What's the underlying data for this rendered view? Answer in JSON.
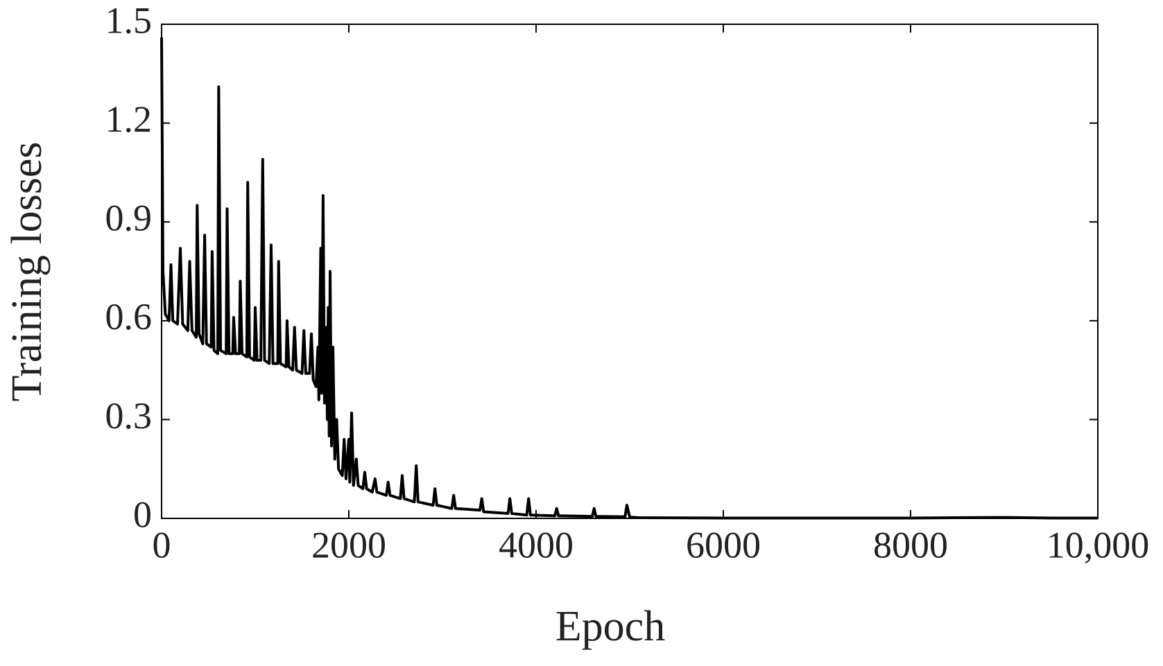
{
  "chart_data": {
    "type": "line",
    "x_label": "Epoch",
    "y_label": "Training losses",
    "x": [
      0,
      15,
      40,
      80,
      100,
      120,
      170,
      200,
      225,
      280,
      300,
      325,
      370,
      380,
      400,
      440,
      460,
      480,
      530,
      540,
      560,
      600,
      610,
      630,
      690,
      700,
      720,
      760,
      770,
      790,
      830,
      840,
      860,
      910,
      920,
      940,
      990,
      1000,
      1020,
      1060,
      1080,
      1100,
      1150,
      1170,
      1190,
      1240,
      1250,
      1270,
      1330,
      1340,
      1360,
      1400,
      1420,
      1440,
      1500,
      1520,
      1540,
      1580,
      1600,
      1620,
      1650,
      1670,
      1680,
      1700,
      1710,
      1725,
      1740,
      1760,
      1770,
      1780,
      1790,
      1800,
      1815,
      1830,
      1850,
      1870,
      1890,
      1930,
      1950,
      1970,
      2000,
      2010,
      2030,
      2050,
      2080,
      2100,
      2150,
      2170,
      2190,
      2250,
      2280,
      2300,
      2400,
      2420,
      2440,
      2550,
      2570,
      2590,
      2700,
      2720,
      2740,
      2900,
      2920,
      2940,
      3100,
      3120,
      3140,
      3400,
      3420,
      3440,
      3700,
      3720,
      3740,
      3900,
      3920,
      3940,
      4200,
      4220,
      4240,
      4600,
      4620,
      4640,
      4950,
      4970,
      5000,
      5100,
      6000,
      8000,
      9000,
      9500,
      10000
    ],
    "values": [
      1.46,
      0.75,
      0.62,
      0.6,
      0.77,
      0.6,
      0.59,
      0.82,
      0.59,
      0.57,
      0.78,
      0.57,
      0.55,
      0.95,
      0.56,
      0.53,
      0.86,
      0.53,
      0.52,
      0.81,
      0.51,
      0.5,
      1.31,
      0.51,
      0.5,
      0.94,
      0.5,
      0.5,
      0.61,
      0.5,
      0.5,
      0.72,
      0.5,
      0.49,
      1.02,
      0.49,
      0.48,
      0.64,
      0.48,
      0.48,
      1.09,
      0.48,
      0.47,
      0.83,
      0.47,
      0.47,
      0.78,
      0.47,
      0.46,
      0.6,
      0.46,
      0.45,
      0.58,
      0.45,
      0.44,
      0.57,
      0.44,
      0.44,
      0.56,
      0.42,
      0.4,
      0.52,
      0.36,
      0.82,
      0.38,
      0.98,
      0.35,
      0.58,
      0.3,
      0.64,
      0.25,
      0.75,
      0.22,
      0.52,
      0.18,
      0.3,
      0.15,
      0.13,
      0.24,
      0.12,
      0.24,
      0.11,
      0.32,
      0.1,
      0.18,
      0.1,
      0.09,
      0.14,
      0.09,
      0.08,
      0.12,
      0.08,
      0.07,
      0.11,
      0.07,
      0.06,
      0.13,
      0.06,
      0.05,
      0.16,
      0.05,
      0.04,
      0.09,
      0.04,
      0.03,
      0.07,
      0.03,
      0.025,
      0.06,
      0.02,
      0.015,
      0.06,
      0.015,
      0.01,
      0.06,
      0.01,
      0.008,
      0.03,
      0.008,
      0.006,
      0.03,
      0.006,
      0.005,
      0.04,
      0.004,
      0.002,
      0.001,
      0.001,
      0.003,
      0.001,
      0.001
    ],
    "color": "#000000",
    "xlim": [
      0,
      10000
    ],
    "xticks": [
      0,
      2000,
      4000,
      6000,
      8000,
      {
        "value": 10000,
        "label": "10,000"
      }
    ],
    "ylim": [
      0,
      1.5
    ],
    "yticks": [
      0,
      0.3,
      0.6,
      0.9,
      1.2,
      1.5
    ]
  }
}
